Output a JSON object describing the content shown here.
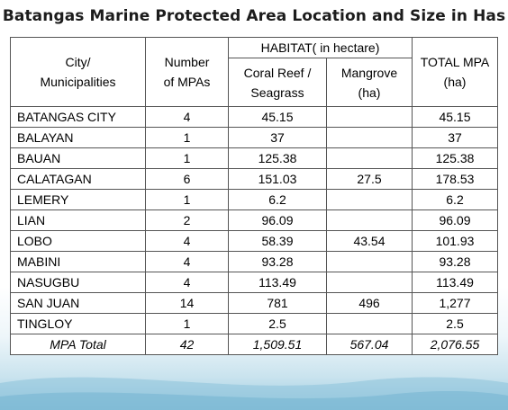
{
  "title": "Batangas Marine Protected Area Location and Size in Has",
  "table": {
    "headers": {
      "city": [
        "City/",
        "Municipalities"
      ],
      "number": [
        "Number",
        "of MPAs"
      ],
      "habitat": "HABITAT( in hectare)",
      "coral": [
        "Coral Reef /",
        "Seagrass"
      ],
      "mangrove": [
        "Mangrove",
        "(ha)"
      ],
      "total": [
        "TOTAL MPA",
        "(ha)"
      ]
    },
    "rows": [
      {
        "city": "BATANGAS CITY",
        "number": "4",
        "coral": "45.15",
        "mangrove": "",
        "total": "45.15"
      },
      {
        "city": "BALAYAN",
        "number": "1",
        "coral": "37",
        "mangrove": "",
        "total": "37"
      },
      {
        "city": "BAUAN",
        "number": "1",
        "coral": "125.38",
        "mangrove": "",
        "total": "125.38"
      },
      {
        "city": "CALATAGAN",
        "number": "6",
        "coral": "151.03",
        "mangrove": "27.5",
        "total": "178.53"
      },
      {
        "city": "LEMERY",
        "number": "1",
        "coral": "6.2",
        "mangrove": "",
        "total": "6.2"
      },
      {
        "city": "LIAN",
        "number": "2",
        "coral": "96.09",
        "mangrove": "",
        "total": "96.09"
      },
      {
        "city": "LOBO",
        "number": "4",
        "coral": "58.39",
        "mangrove": "43.54",
        "total": "101.93"
      },
      {
        "city": "MABINI",
        "number": "4",
        "coral": "93.28",
        "mangrove": "",
        "total": "93.28"
      },
      {
        "city": "NASUGBU",
        "number": "4",
        "coral": "113.49",
        "mangrove": "",
        "total": "113.49"
      },
      {
        "city": "SAN JUAN",
        "number": "14",
        "coral": "781",
        "mangrove": "496",
        "total": "1,277"
      },
      {
        "city": "TINGLOY",
        "number": "1",
        "coral": "2.5",
        "mangrove": "",
        "total": "2.5"
      }
    ],
    "total_row": {
      "label": "MPA Total",
      "number": "42",
      "coral": "1,509.51",
      "mangrove": "567.04",
      "total": "2,076.55"
    }
  }
}
